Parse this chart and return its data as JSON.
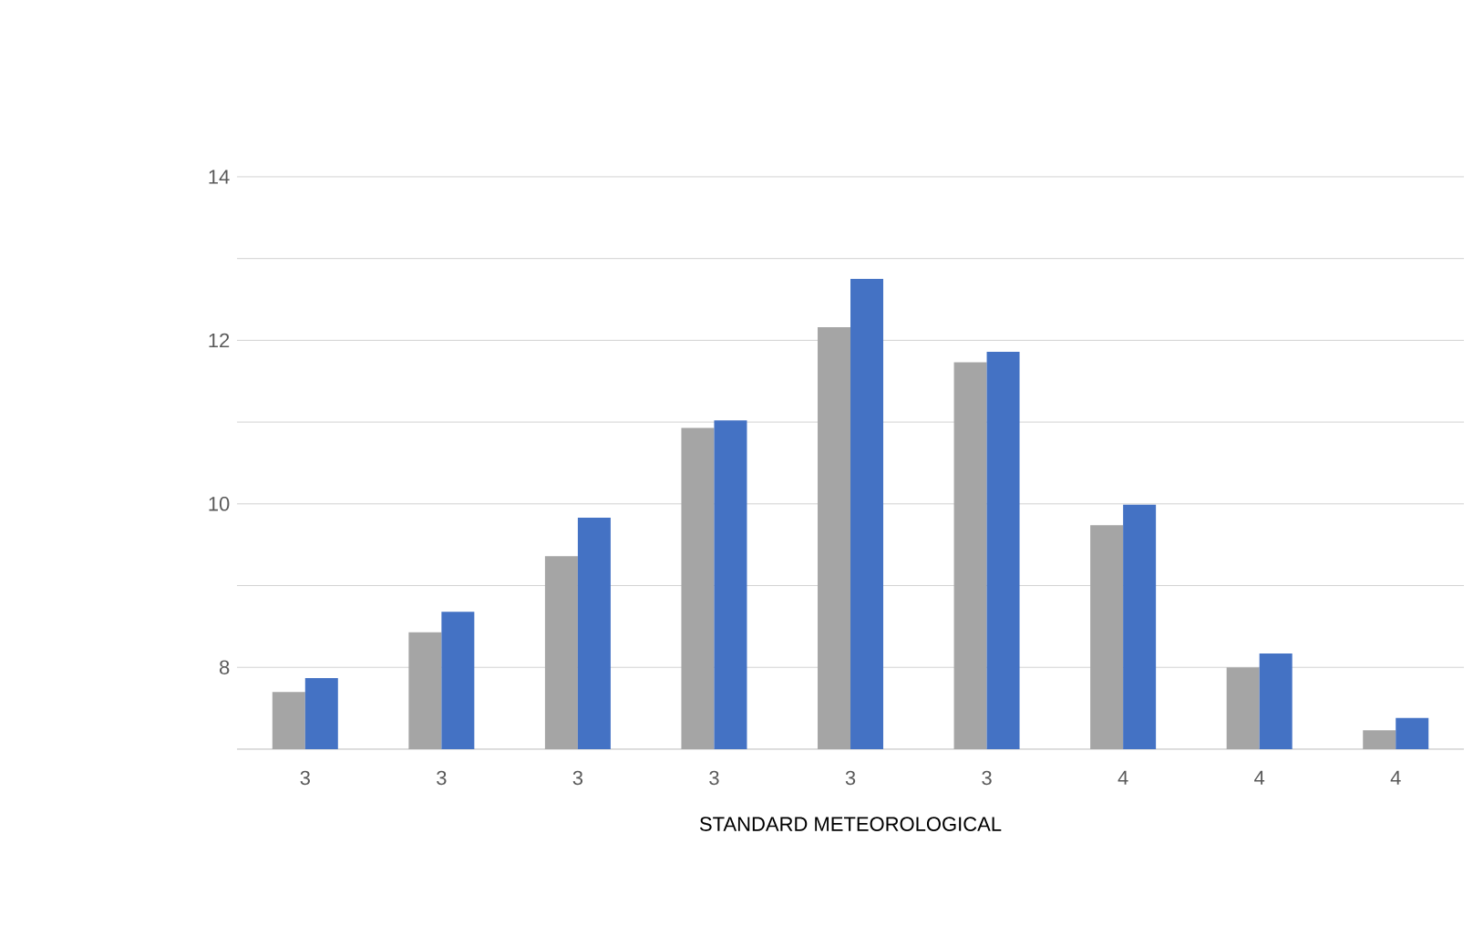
{
  "chart_data": {
    "type": "bar",
    "xlabel": "STANDARD METEOROLOGICAL",
    "categories": [
      "3",
      "3",
      "3",
      "3",
      "3",
      "3",
      "4",
      "4",
      "4"
    ],
    "series": [
      {
        "color": "#a5a5a5",
        "values": [
          7.7,
          8.43,
          9.36,
          10.93,
          12.16,
          11.73,
          9.74,
          8.0,
          7.23
        ]
      },
      {
        "color": "#4472c4",
        "values": [
          7.87,
          8.68,
          9.83,
          11.02,
          12.75,
          11.86,
          9.99,
          8.17,
          7.38
        ]
      }
    ],
    "ylim": [
      7,
      14
    ],
    "yticks": [
      {
        "value": 7,
        "label": null
      },
      8,
      {
        "value": 9,
        "label": null
      },
      10,
      {
        "value": 11,
        "label": null
      },
      12,
      {
        "value": 13,
        "label": null
      },
      14
    ],
    "grid": "y"
  }
}
